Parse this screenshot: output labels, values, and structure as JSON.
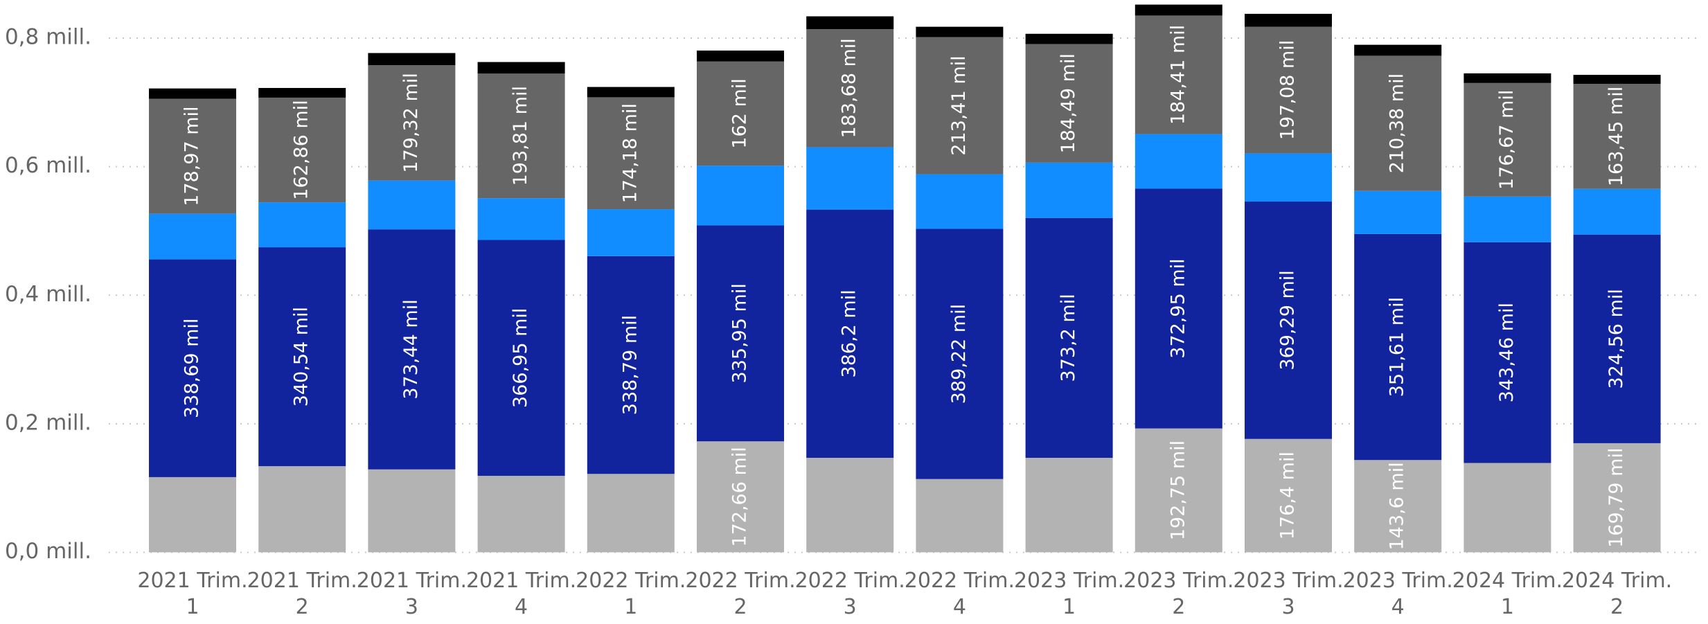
{
  "chart_data": {
    "type": "stacked_bar",
    "categories": [
      "2021 Trim. 1",
      "2021 Trim. 2",
      "2021 Trim. 3",
      "2021 Trim. 4",
      "2022 Trim. 1",
      "2022 Trim. 2",
      "2022 Trim. 3",
      "2022 Trim. 4",
      "2023 Trim. 1",
      "2023 Trim. 2",
      "2023 Trim. 3",
      "2023 Trim. 4",
      "2024 Trim. 1",
      "2024 Trim. 2"
    ],
    "series": [
      {
        "color": "#b3b3b3",
        "values": [
          117000,
          134000,
          129000,
          119000,
          122000,
          172660,
          147000,
          114000,
          147000,
          192750,
          176400,
          143600,
          139000,
          169790
        ],
        "value_labels": [
          null,
          null,
          null,
          null,
          null,
          "172,66 mil",
          null,
          null,
          null,
          "192,75 mil",
          "176,4 mil",
          "143,6 mil",
          null,
          "169,79 mil"
        ]
      },
      {
        "color": "#12239e",
        "values": [
          338690,
          340540,
          373440,
          366950,
          338790,
          335950,
          386200,
          389220,
          373200,
          372950,
          369290,
          351610,
          343460,
          324560
        ],
        "value_labels": [
          "338,69 mil",
          "340,54 mil",
          "373,44 mil",
          "366,95 mil",
          "338,79 mil",
          "335,95 mil",
          "386,2 mil",
          "389,22 mil",
          "373,2 mil",
          "372,95 mil",
          "369,29 mil",
          "351,61 mil",
          "343,46 mil",
          "324,56 mil"
        ]
      },
      {
        "color": "#118dff",
        "values": [
          71000,
          70000,
          76000,
          65000,
          73000,
          93000,
          97000,
          85000,
          86000,
          85000,
          75000,
          67000,
          71000,
          71000
        ]
      },
      {
        "color": "#666666",
        "values": [
          178970,
          162860,
          179320,
          193810,
          174180,
          162000,
          183680,
          213410,
          184490,
          184410,
          197080,
          210380,
          176670,
          163450
        ],
        "value_labels": [
          "178,97 mil",
          "162,86 mil",
          "179,32 mil",
          "193,81 mil",
          "174,18 mil",
          "162 mil",
          "183,68 mil",
          "213,41 mil",
          "184,49 mil",
          "184,41 mil",
          "197,08 mil",
          "210,38 mil",
          "176,67 mil",
          "163,45 mil"
        ]
      },
      {
        "color": "#000000",
        "values": [
          16000,
          15000,
          19000,
          18000,
          16000,
          17000,
          20000,
          16000,
          16000,
          17000,
          20000,
          17000,
          15000,
          14000
        ]
      }
    ],
    "ylim": [
      0,
      850000
    ],
    "yticks": [
      {
        "value": 0,
        "label": "0,0 mill."
      },
      {
        "value": 200000,
        "label": "0,2 mill."
      },
      {
        "value": 400000,
        "label": "0,4 mill."
      },
      {
        "value": 600000,
        "label": "0,6 mill."
      },
      {
        "value": 800000,
        "label": "0,8 mill."
      }
    ],
    "grid": true
  }
}
